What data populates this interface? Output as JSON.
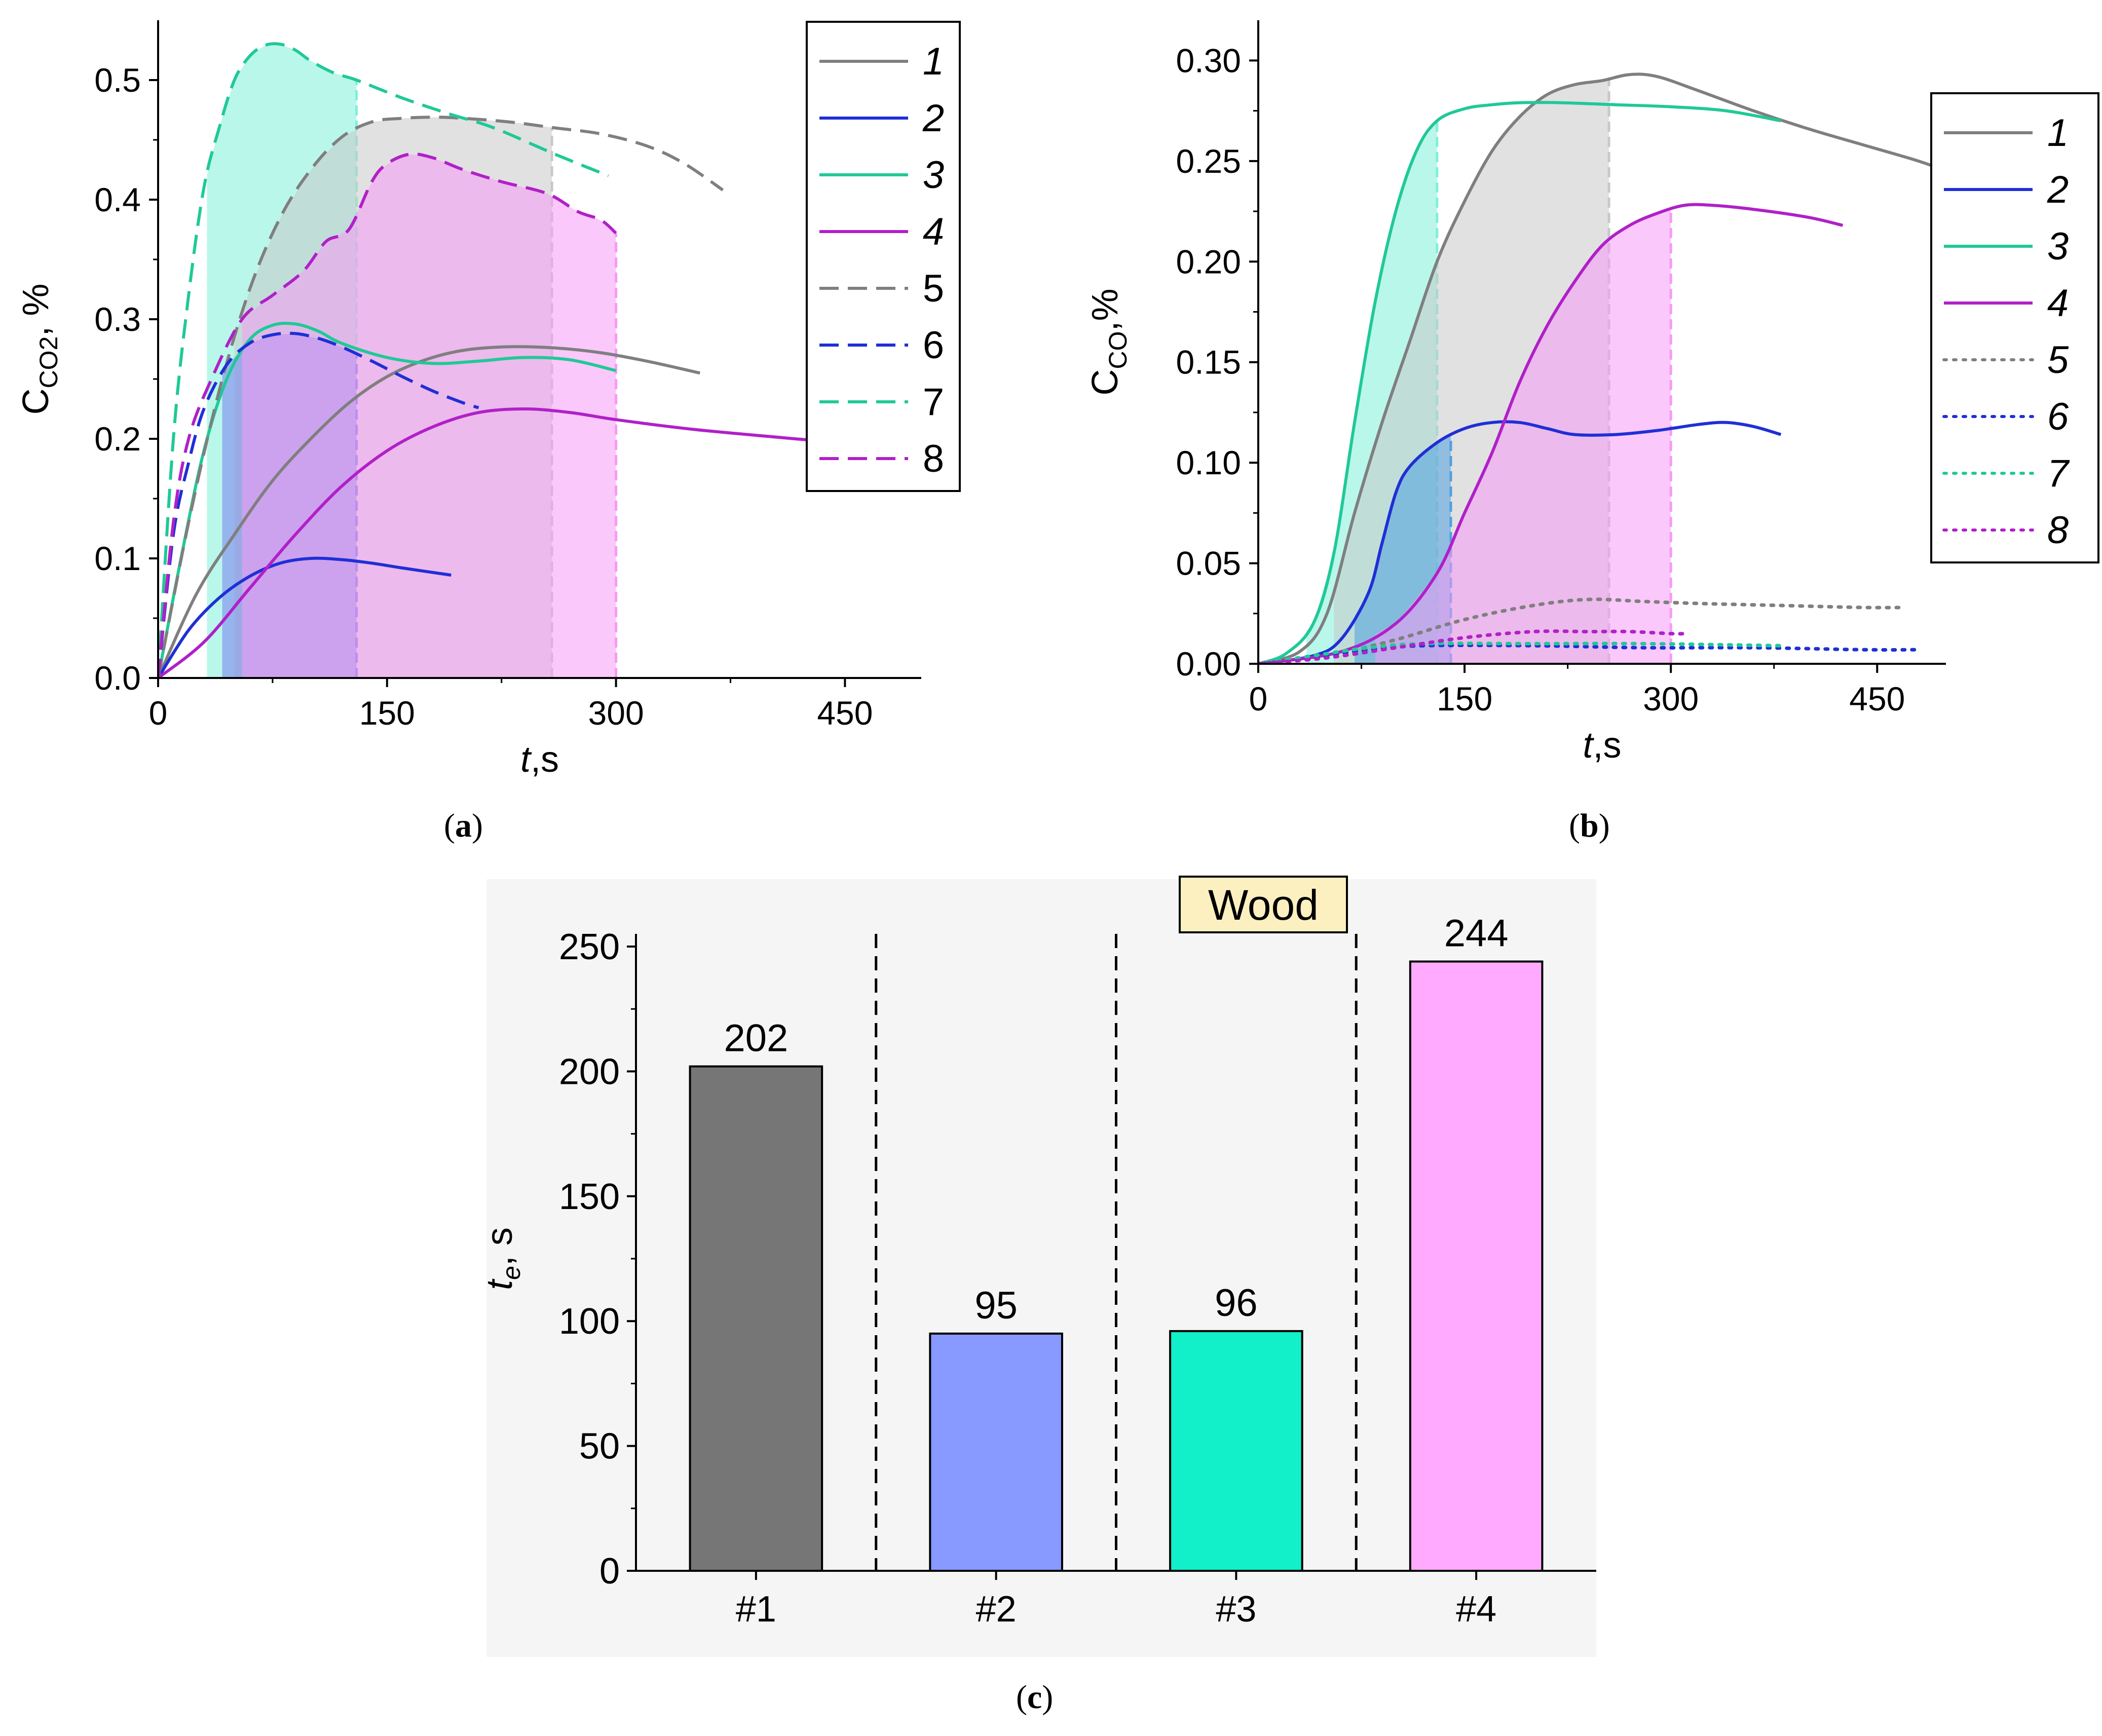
{
  "figure": {
    "captions": [
      {
        "open": "(",
        "letter": "a",
        "close": ")"
      },
      {
        "open": "(",
        "letter": "b",
        "close": ")"
      },
      {
        "open": "(",
        "letter": "c",
        "close": ")"
      }
    ]
  },
  "chart_data": [
    {
      "panel": "a",
      "type": "line",
      "xlabel_italic": "t",
      "xlabel_unit": ",s",
      "ylabel_main": "C",
      "ylabel_sub": "CO2",
      "ylabel_unit": ", %",
      "xlim": [
        0,
        500
      ],
      "ylim": [
        0,
        0.55
      ],
      "xticks": [
        0,
        150,
        300,
        450
      ],
      "xtick_labels": [
        "0",
        "150",
        "300",
        "450"
      ],
      "yticks": [
        0.0,
        0.1,
        0.2,
        0.3,
        0.4,
        0.5
      ],
      "ytick_labels": [
        "0.0",
        "0.1",
        "0.2",
        "0.3",
        "0.4",
        "0.5"
      ],
      "legend": {
        "position": "top-right",
        "entries": [
          {
            "label": "1",
            "italic": true,
            "color": "#7f7f7f",
            "dash": "solid"
          },
          {
            "label": "2",
            "italic": true,
            "color": "#1f2fd6",
            "dash": "solid"
          },
          {
            "label": "3",
            "italic": true,
            "color": "#20c997",
            "dash": "solid"
          },
          {
            "label": "4",
            "italic": true,
            "color": "#b020c8",
            "dash": "solid"
          },
          {
            "label": "5",
            "italic": false,
            "color": "#7f7f7f",
            "dash": "dashed"
          },
          {
            "label": "6",
            "italic": false,
            "color": "#1f2fd6",
            "dash": "dashed"
          },
          {
            "label": "7",
            "italic": false,
            "color": "#20c997",
            "dash": "dashed"
          },
          {
            "label": "8",
            "italic": false,
            "color": "#b020c8",
            "dash": "dashed"
          }
        ]
      },
      "shaded_regions": [
        {
          "series": "7",
          "x_start": 32,
          "x_end": 130,
          "color": "#7ff0d8"
        },
        {
          "series": "5",
          "x_start": 50,
          "x_end": 258,
          "color": "#c8c8c8"
        },
        {
          "series": "6",
          "x_start": 42,
          "x_end": 130,
          "color": "#7a7ff0"
        },
        {
          "series": "8",
          "x_start": 55,
          "x_end": 300,
          "color": "#f59af5"
        }
      ],
      "series": [
        {
          "name": "1",
          "color": "#7f7f7f",
          "dash": "solid",
          "x": [
            0,
            25,
            50,
            75,
            100,
            125,
            150,
            175,
            200,
            230,
            260,
            290,
            320,
            355
          ],
          "y": [
            0,
            0.07,
            0.12,
            0.165,
            0.2,
            0.23,
            0.252,
            0.266,
            0.274,
            0.277,
            0.276,
            0.272,
            0.265,
            0.255
          ]
        },
        {
          "name": "2",
          "color": "#1f2fd6",
          "dash": "solid",
          "x": [
            0,
            20,
            40,
            60,
            80,
            100,
            120,
            140,
            160,
            192
          ],
          "y": [
            0,
            0.04,
            0.067,
            0.085,
            0.096,
            0.1,
            0.099,
            0.096,
            0.092,
            0.086
          ]
        },
        {
          "name": "3",
          "color": "#20c997",
          "dash": "solid",
          "x": [
            0,
            15,
            30,
            45,
            60,
            75,
            90,
            105,
            120,
            150,
            180,
            210,
            240,
            270,
            300
          ],
          "y": [
            0,
            0.1,
            0.19,
            0.25,
            0.283,
            0.295,
            0.296,
            0.29,
            0.28,
            0.268,
            0.263,
            0.265,
            0.268,
            0.266,
            0.257
          ]
        },
        {
          "name": "4",
          "color": "#b020c8",
          "dash": "solid",
          "x": [
            0,
            30,
            60,
            90,
            120,
            150,
            180,
            210,
            240,
            270,
            300,
            350,
            400,
            440,
            500
          ],
          "y": [
            0,
            0.03,
            0.075,
            0.12,
            0.16,
            0.19,
            0.21,
            0.222,
            0.225,
            0.222,
            0.216,
            0.208,
            0.202,
            0.198,
            0.196
          ]
        },
        {
          "name": "5",
          "color": "#7f7f7f",
          "dash": "dashed",
          "x": [
            0,
            20,
            40,
            60,
            80,
            100,
            120,
            140,
            160,
            180,
            200,
            230,
            260,
            290,
            320,
            345,
            370
          ],
          "y": [
            0,
            0.13,
            0.24,
            0.325,
            0.385,
            0.425,
            0.452,
            0.465,
            0.468,
            0.469,
            0.468,
            0.465,
            0.46,
            0.455,
            0.445,
            0.43,
            0.408
          ]
        },
        {
          "name": "6",
          "color": "#1f2fd6",
          "dash": "dashed",
          "x": [
            0,
            10,
            20,
            30,
            45,
            60,
            75,
            90,
            105,
            120,
            140,
            160,
            180,
            200,
            210
          ],
          "y": [
            0,
            0.12,
            0.18,
            0.225,
            0.262,
            0.28,
            0.287,
            0.288,
            0.284,
            0.277,
            0.265,
            0.252,
            0.24,
            0.23,
            0.226
          ]
        },
        {
          "name": "7",
          "color": "#20c997",
          "dash": "dashed",
          "x": [
            0,
            10,
            20,
            30,
            40,
            50,
            60,
            70,
            80,
            90,
            100,
            115,
            130,
            160,
            190,
            220,
            260,
            295
          ],
          "y": [
            0,
            0.2,
            0.32,
            0.41,
            0.46,
            0.5,
            0.52,
            0.529,
            0.53,
            0.525,
            0.516,
            0.506,
            0.5,
            0.485,
            0.472,
            0.46,
            0.438,
            0.42
          ]
        },
        {
          "name": "8",
          "color": "#b020c8",
          "dash": "dashed",
          "x": [
            0,
            10,
            20,
            35,
            55,
            75,
            95,
            110,
            125,
            140,
            150,
            165,
            180,
            200,
            225,
            255,
            275,
            290,
            300
          ],
          "y": [
            0,
            0.13,
            0.2,
            0.25,
            0.3,
            0.32,
            0.34,
            0.365,
            0.375,
            0.415,
            0.43,
            0.438,
            0.435,
            0.425,
            0.415,
            0.405,
            0.39,
            0.383,
            0.372
          ]
        }
      ]
    },
    {
      "panel": "b",
      "type": "line",
      "xlabel_italic": "t",
      "xlabel_unit": ",s",
      "ylabel_main": "C",
      "ylabel_sub": "CO",
      "ylabel_unit": ",%",
      "xlim": [
        0,
        500
      ],
      "ylim": [
        0,
        0.32
      ],
      "xticks": [
        0,
        150,
        300,
        450
      ],
      "xtick_labels": [
        "0",
        "150",
        "300",
        "450"
      ],
      "yticks": [
        0.0,
        0.05,
        0.1,
        0.15,
        0.2,
        0.25,
        0.3
      ],
      "ytick_labels": [
        "0.00",
        "0.05",
        "0.10",
        "0.15",
        "0.20",
        "0.25",
        "0.30"
      ],
      "legend": {
        "position": "top-right",
        "entries": [
          {
            "label": "1",
            "italic": true,
            "color": "#7f7f7f",
            "dash": "solid"
          },
          {
            "label": "2",
            "italic": true,
            "color": "#1f2fd6",
            "dash": "solid"
          },
          {
            "label": "3",
            "italic": true,
            "color": "#20c997",
            "dash": "solid"
          },
          {
            "label": "4",
            "italic": true,
            "color": "#b020c8",
            "dash": "solid"
          },
          {
            "label": "5",
            "italic": true,
            "color": "#7f7f7f",
            "dash": "dotted"
          },
          {
            "label": "6",
            "italic": true,
            "color": "#1f2fd6",
            "dash": "dotted"
          },
          {
            "label": "7",
            "italic": true,
            "color": "#20c997",
            "dash": "dotted"
          },
          {
            "label": "8",
            "italic": true,
            "color": "#b020c8",
            "dash": "dotted"
          }
        ]
      },
      "shaded_regions": [
        {
          "series": "3",
          "x_start": 35,
          "x_end": 130,
          "color": "#7ff0d8"
        },
        {
          "series": "1",
          "x_start": 55,
          "x_end": 255,
          "color": "#c8c8c8"
        },
        {
          "series": "2",
          "x_start": 70,
          "x_end": 140,
          "color": "#4fa0e0"
        },
        {
          "series": "4",
          "x_start": 85,
          "x_end": 300,
          "color": "#f59af5"
        }
      ],
      "series": [
        {
          "name": "1",
          "color": "#7f7f7f",
          "dash": "solid",
          "x": [
            0,
            30,
            50,
            70,
            90,
            110,
            130,
            150,
            170,
            190,
            210,
            230,
            250,
            270,
            290,
            320,
            360,
            400,
            440,
            480,
            500
          ],
          "y": [
            0,
            0.006,
            0.025,
            0.075,
            0.12,
            0.16,
            0.2,
            0.23,
            0.255,
            0.272,
            0.283,
            0.288,
            0.29,
            0.293,
            0.292,
            0.285,
            0.275,
            0.266,
            0.258,
            0.25,
            0.245
          ]
        },
        {
          "name": "2",
          "color": "#1f2fd6",
          "dash": "solid",
          "x": [
            0,
            40,
            60,
            80,
            90,
            100,
            110,
            130,
            150,
            170,
            190,
            210,
            230,
            260,
            290,
            320,
            340,
            360,
            380
          ],
          "y": [
            0,
            0.004,
            0.012,
            0.035,
            0.06,
            0.085,
            0.098,
            0.11,
            0.117,
            0.12,
            0.12,
            0.117,
            0.114,
            0.114,
            0.116,
            0.119,
            0.12,
            0.118,
            0.114
          ]
        },
        {
          "name": "3",
          "color": "#20c997",
          "dash": "solid",
          "x": [
            0,
            20,
            40,
            55,
            70,
            85,
            100,
            115,
            130,
            150,
            170,
            190,
            220,
            260,
            300,
            340,
            380
          ],
          "y": [
            0,
            0.005,
            0.02,
            0.055,
            0.12,
            0.18,
            0.225,
            0.255,
            0.27,
            0.276,
            0.278,
            0.279,
            0.279,
            0.278,
            0.277,
            0.275,
            0.27
          ]
        },
        {
          "name": "4",
          "color": "#b020c8",
          "dash": "solid",
          "x": [
            0,
            60,
            100,
            130,
            150,
            170,
            190,
            210,
            230,
            250,
            270,
            290,
            310,
            330,
            360,
            400,
            425
          ],
          "y": [
            0,
            0.006,
            0.02,
            0.045,
            0.075,
            0.105,
            0.14,
            0.168,
            0.19,
            0.208,
            0.218,
            0.224,
            0.228,
            0.228,
            0.226,
            0.222,
            0.218
          ]
        },
        {
          "name": "5",
          "color": "#7f7f7f",
          "dash": "dotted",
          "x": [
            0,
            50,
            100,
            150,
            200,
            240,
            280,
            320,
            380,
            440,
            470
          ],
          "y": [
            0,
            0.004,
            0.012,
            0.022,
            0.029,
            0.032,
            0.031,
            0.03,
            0.029,
            0.028,
            0.028
          ]
        },
        {
          "name": "6",
          "color": "#1f2fd6",
          "dash": "dotted",
          "x": [
            0,
            40,
            80,
            120,
            200,
            280,
            360,
            440,
            480
          ],
          "y": [
            0,
            0.003,
            0.007,
            0.009,
            0.009,
            0.008,
            0.008,
            0.007,
            0.007
          ]
        },
        {
          "name": "7",
          "color": "#20c997",
          "dash": "dotted",
          "x": [
            0,
            40,
            80,
            120,
            200,
            280,
            380
          ],
          "y": [
            0,
            0.004,
            0.008,
            0.01,
            0.01,
            0.01,
            0.009
          ]
        },
        {
          "name": "8",
          "color": "#b020c8",
          "dash": "dotted",
          "x": [
            0,
            50,
            100,
            150,
            200,
            240,
            270,
            300,
            310
          ],
          "y": [
            0,
            0.003,
            0.008,
            0.013,
            0.016,
            0.016,
            0.016,
            0.015,
            0.015
          ]
        }
      ]
    },
    {
      "panel": "c",
      "type": "bar",
      "title": "Wood",
      "xlabel": "",
      "ylabel_main": "t",
      "ylabel_sub": "e",
      "ylabel_unit": ", s",
      "ylim": [
        0,
        250
      ],
      "yticks": [
        0,
        50,
        100,
        150,
        200,
        250
      ],
      "ytick_labels": [
        "0",
        "50",
        "100",
        "150",
        "200",
        "250"
      ],
      "categories": [
        "#1",
        "#2",
        "#3",
        "#4"
      ],
      "values": [
        202,
        95,
        96,
        244
      ],
      "value_labels": [
        "202",
        "95",
        "96",
        "244"
      ],
      "colors": [
        "#767676",
        "#8899ff",
        "#11f0c8",
        "#ffaaff"
      ],
      "separators": "dashed vertical lines between categories"
    }
  ]
}
